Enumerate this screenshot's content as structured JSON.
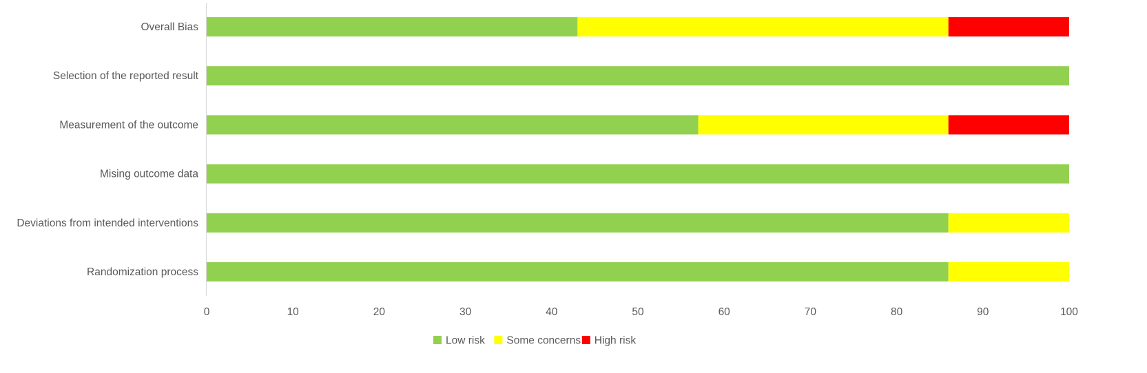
{
  "chart_data": {
    "type": "bar",
    "orientation": "horizontal",
    "stacked": true,
    "title": "",
    "xlabel": "",
    "ylabel": "",
    "xlim": [
      0,
      100
    ],
    "x_ticks": [
      "0",
      "10",
      "20",
      "30",
      "40",
      "50",
      "60",
      "70",
      "80",
      "90",
      "100"
    ],
    "grid": false,
    "legend_position": "bottom",
    "categories": [
      "Overall Bias",
      "Selection of the reported result",
      "Measurement of the outcome",
      "Mising outcome data",
      "Deviations from intended interventions",
      "Randomization process"
    ],
    "series": [
      {
        "name": "Low risk",
        "color": "#92D050",
        "values": [
          43,
          100,
          57,
          100,
          86,
          86
        ]
      },
      {
        "name": "Some concerns",
        "color": "#FFFF00",
        "values": [
          43,
          0,
          29,
          0,
          14,
          14
        ]
      },
      {
        "name": "High risk",
        "color": "#FF0000",
        "values": [
          14,
          0,
          14,
          0,
          0,
          0
        ]
      }
    ]
  }
}
